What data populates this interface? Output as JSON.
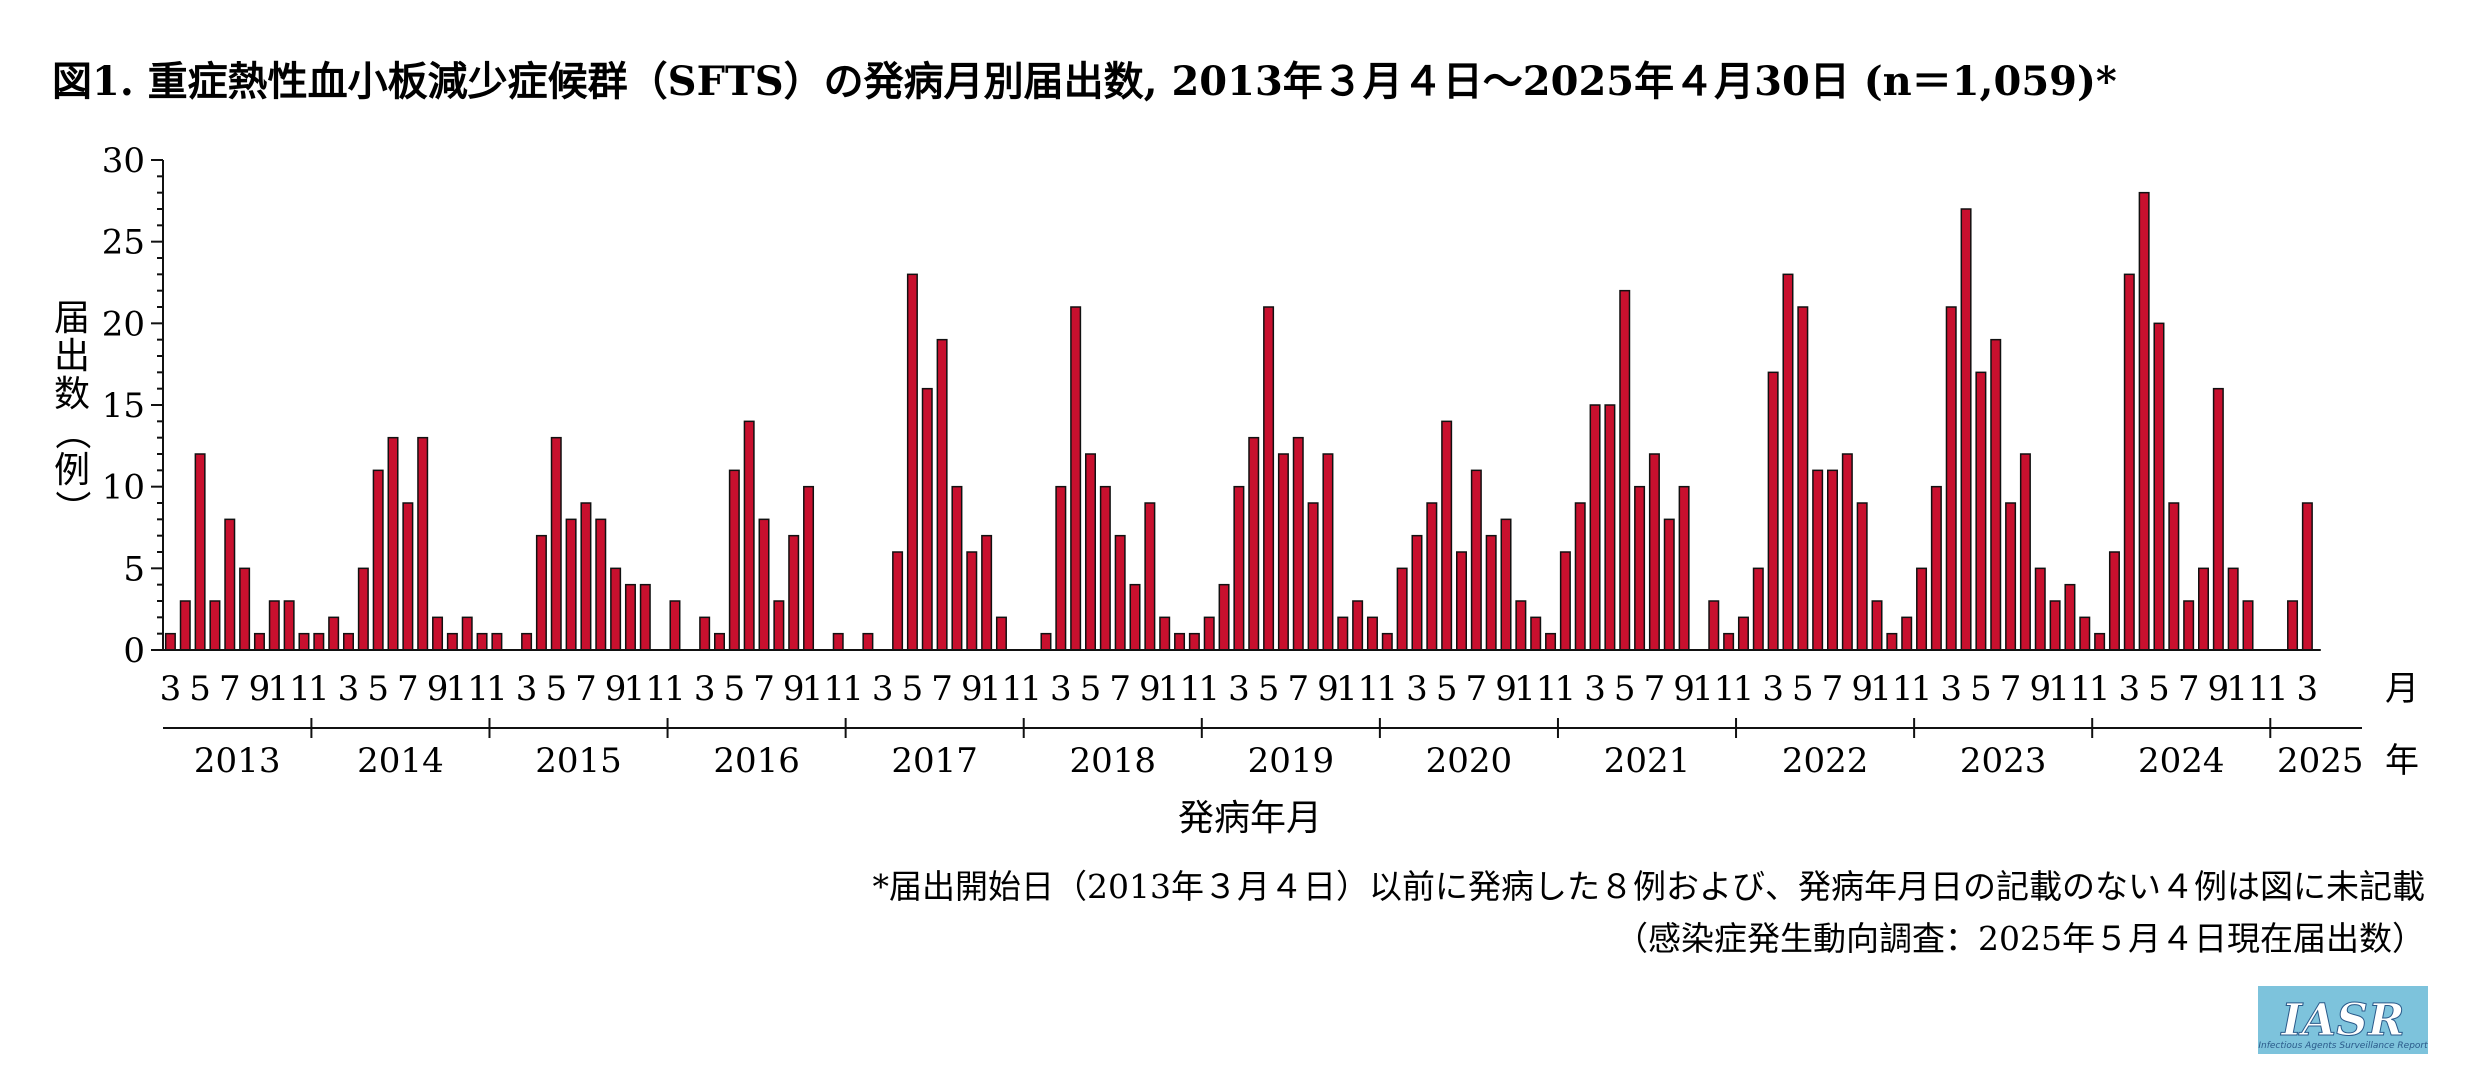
{
  "chart_data": {
    "type": "bar",
    "title": "図1. 重症熱性血小板減少症候群（SFTS）の発病月別届出数, 2013年３月４日～2025年４月30日 (n＝1,059)*",
    "ylabel": "届出数（例）",
    "xlabel": "発病年月",
    "x_unit_month": "月",
    "x_unit_year": "年",
    "ylim": [
      0,
      30
    ],
    "yticks": [
      0,
      5,
      10,
      15,
      20,
      25,
      30
    ],
    "bar_color": "#c8102e",
    "month_tick_labels": [
      "1",
      "3",
      "5",
      "7",
      "9",
      "11"
    ],
    "years": [
      {
        "year": "2013",
        "start_month": 3,
        "values": [
          1,
          3,
          12,
          3,
          8,
          5,
          1,
          3,
          3,
          1
        ]
      },
      {
        "year": "2014",
        "start_month": 1,
        "values": [
          1,
          2,
          1,
          5,
          11,
          13,
          9,
          13,
          2,
          1,
          2,
          1
        ]
      },
      {
        "year": "2015",
        "start_month": 1,
        "values": [
          1,
          0,
          1,
          7,
          13,
          8,
          9,
          8,
          5,
          4,
          4,
          0
        ]
      },
      {
        "year": "2016",
        "start_month": 1,
        "values": [
          3,
          0,
          2,
          1,
          11,
          14,
          8,
          3,
          7,
          10,
          0,
          1
        ]
      },
      {
        "year": "2017",
        "start_month": 1,
        "values": [
          0,
          1,
          0,
          6,
          23,
          16,
          19,
          10,
          6,
          7,
          2,
          0
        ]
      },
      {
        "year": "2018",
        "start_month": 1,
        "values": [
          0,
          1,
          10,
          21,
          12,
          10,
          7,
          4,
          9,
          2,
          1,
          1
        ]
      },
      {
        "year": "2019",
        "start_month": 1,
        "values": [
          2,
          4,
          10,
          13,
          21,
          12,
          13,
          9,
          12,
          2,
          3,
          2
        ]
      },
      {
        "year": "2020",
        "start_month": 1,
        "values": [
          1,
          5,
          7,
          9,
          14,
          6,
          11,
          7,
          8,
          3,
          2,
          1
        ]
      },
      {
        "year": "2021",
        "start_month": 1,
        "values": [
          6,
          9,
          15,
          15,
          22,
          10,
          12,
          8,
          10,
          0,
          3,
          1
        ]
      },
      {
        "year": "2022",
        "start_month": 1,
        "values": [
          2,
          5,
          17,
          23,
          21,
          11,
          11,
          12,
          9,
          3,
          1,
          2
        ]
      },
      {
        "year": "2023",
        "start_month": 1,
        "values": [
          5,
          10,
          21,
          27,
          17,
          19,
          9,
          12,
          5,
          3,
          4,
          2
        ]
      },
      {
        "year": "2024",
        "start_month": 1,
        "values": [
          1,
          6,
          23,
          28,
          20,
          9,
          3,
          5,
          16,
          5,
          3,
          0
        ]
      },
      {
        "year": "2025",
        "start_month": 1,
        "values": [
          0,
          3,
          9
        ]
      }
    ]
  },
  "notes": {
    "footnote": "*届出開始日（2013年３月４日）以前に発病した８例および、発病年月日の記載のない４例は図に未記載",
    "source": "（感染症発生動向調査：2025年５月４日現在届出数）"
  },
  "logo": {
    "text": "IASR",
    "subtext": "Infectious Agents Surveillance Report",
    "color": "#7dc3dc"
  }
}
